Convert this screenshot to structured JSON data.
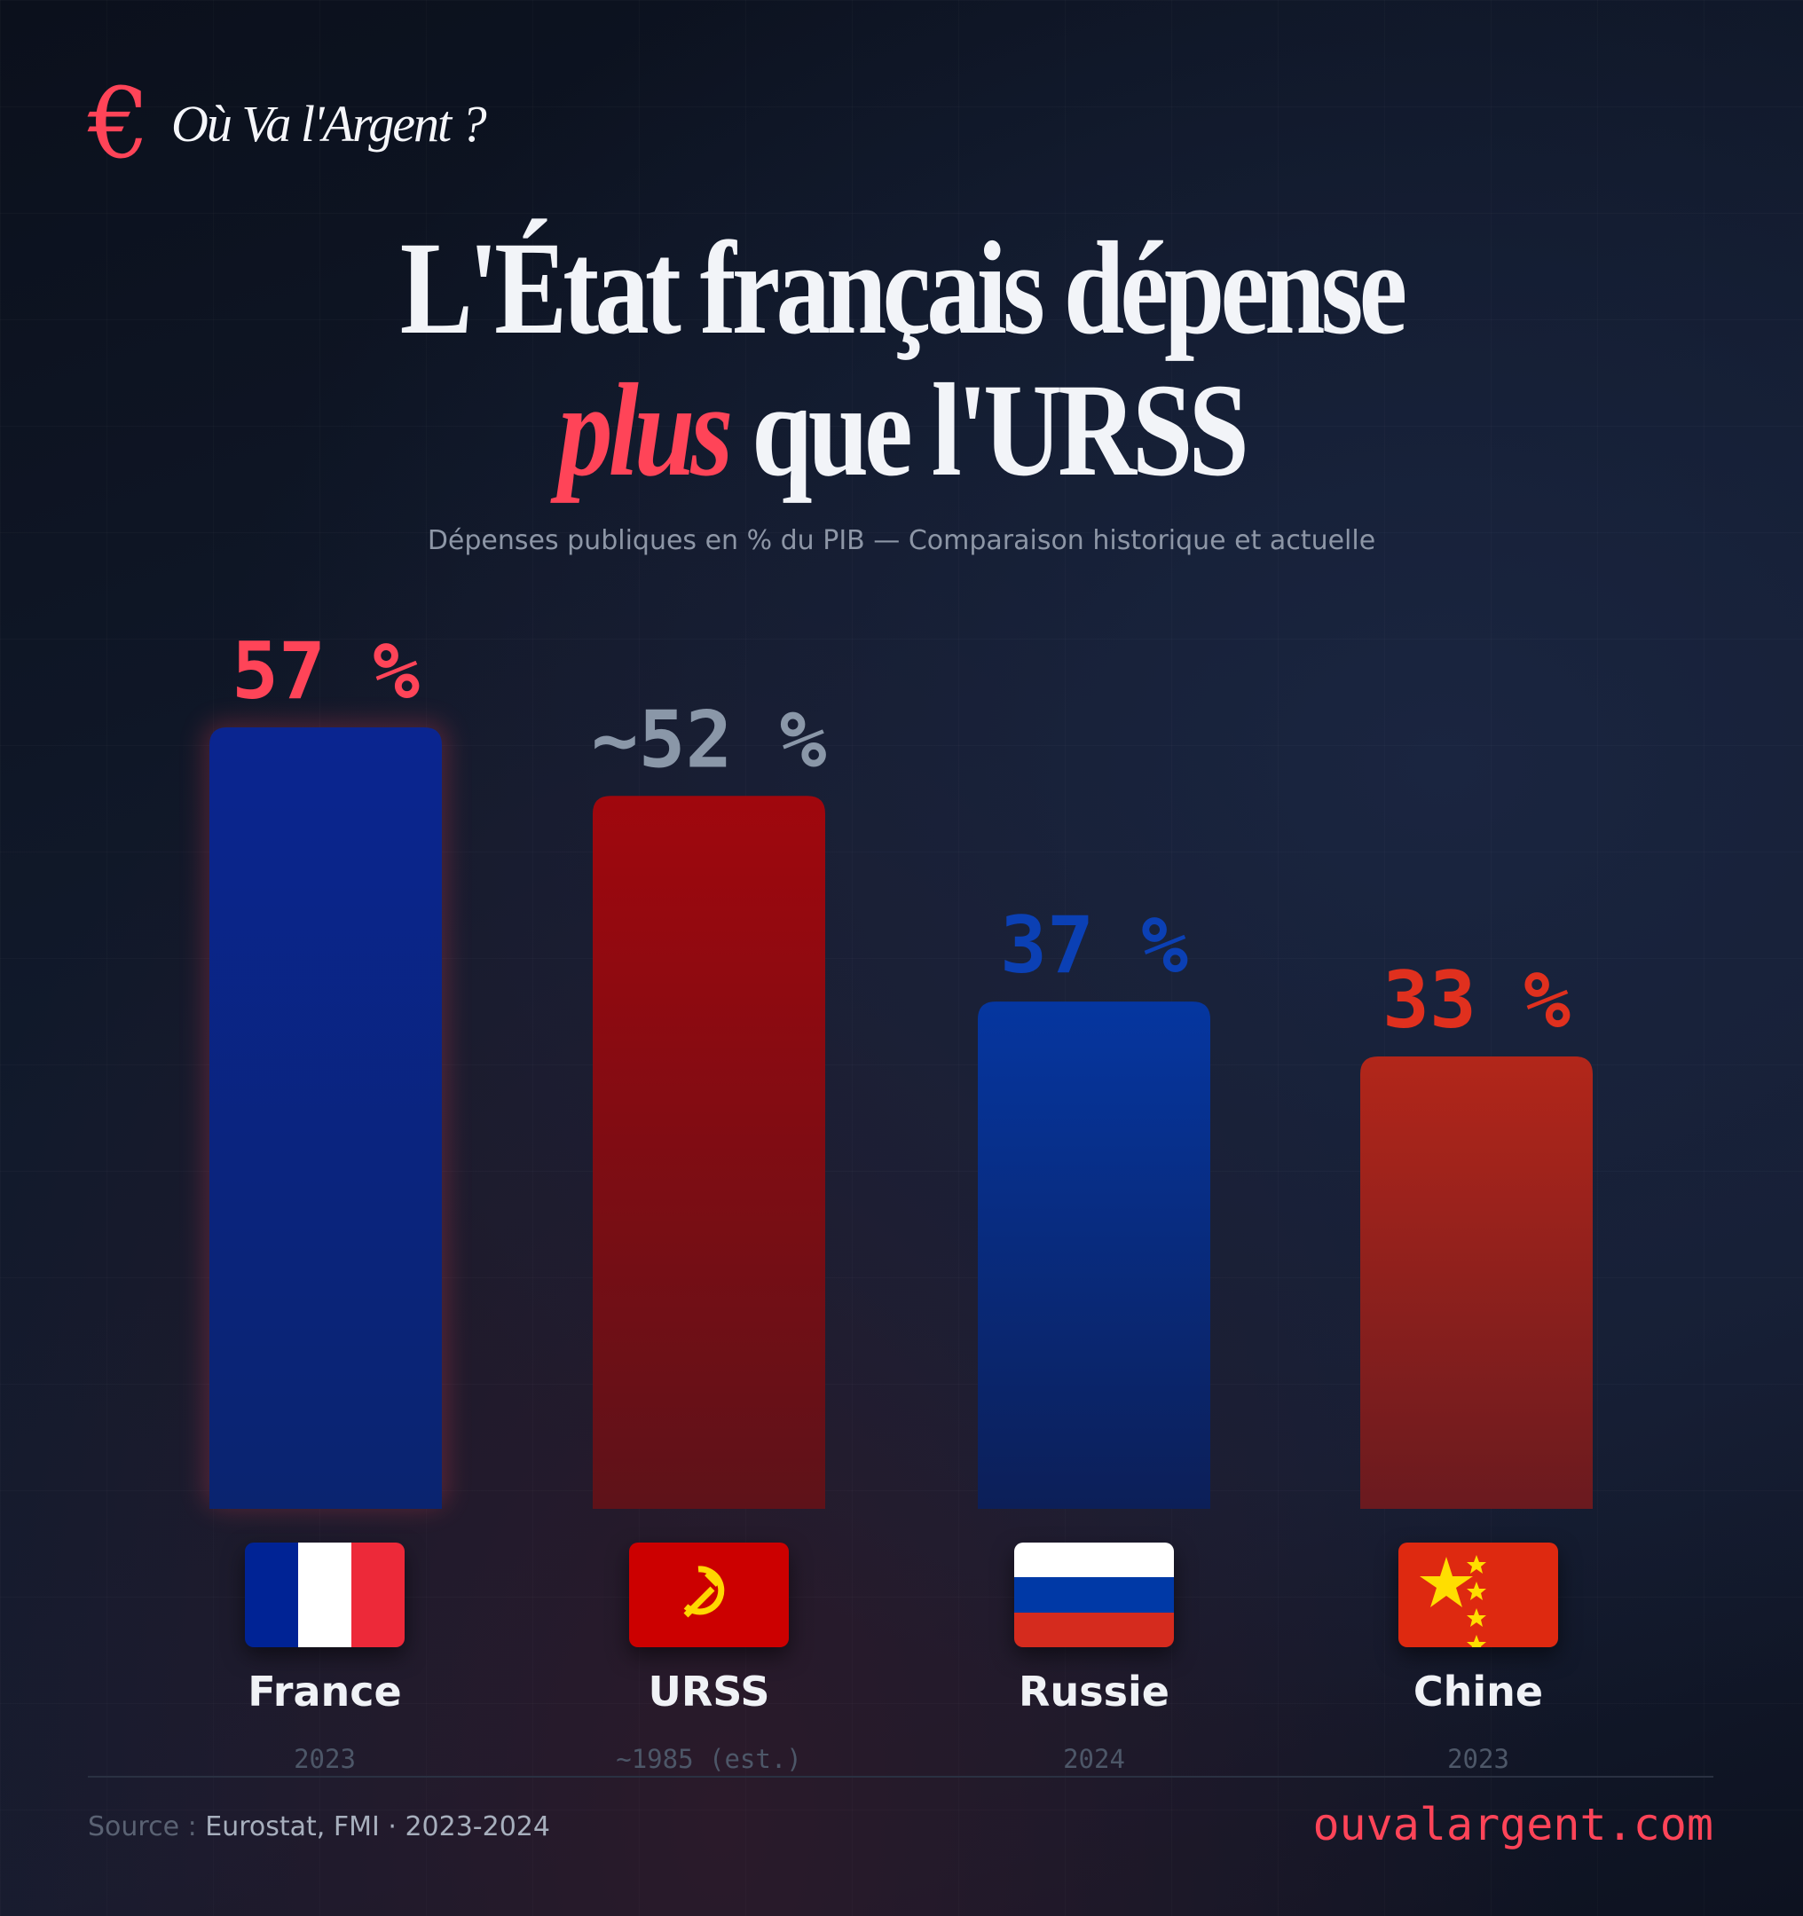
{
  "header": {
    "logo_symbol": "€",
    "brand": "Où Va l'Argent ?"
  },
  "title": {
    "line1": "L'État français dépense",
    "line2_emphasis": "plus",
    "line2_rest": "que l'URSS"
  },
  "subtitle": "Dépenses publiques en % du PIB — Comparaison historique et actuelle",
  "chart_data": {
    "type": "bar",
    "title": "L'État français dépense plus que l'URSS",
    "subtitle": "Dépenses publiques en % du PIB — Comparaison historique et actuelle",
    "categories": [
      "France",
      "URSS",
      "Russie",
      "Chine"
    ],
    "values": [
      57,
      52,
      37,
      33
    ],
    "value_labels": [
      "57 %",
      "~52 %",
      "37 %",
      "33 %"
    ],
    "years": [
      "2023",
      "~1985 (est.)",
      "2024",
      "2023"
    ],
    "ylim": [
      0,
      57
    ],
    "grid": false,
    "colors": {
      "France": {
        "top": "#0a2590",
        "bottom": "#0a2470",
        "label": "#ff4458"
      },
      "URSS": {
        "top": "#a0070d",
        "bottom": "#5e1219",
        "label": "#8a97a8"
      },
      "Russie": {
        "top": "#0536a0",
        "bottom": "#0c1f58",
        "label": "#0b40b4"
      },
      "Chine": {
        "top": "#b2261a",
        "bottom": "#6a1a1f",
        "label": "#e0301e"
      }
    }
  },
  "flags": [
    "france-flag",
    "ussr-flag",
    "russia-flag",
    "china-flag"
  ],
  "footer": {
    "source_label": "Source :",
    "source_value": "Eurostat, FMI · 2023-2024",
    "website": "ouvalargent.com"
  }
}
